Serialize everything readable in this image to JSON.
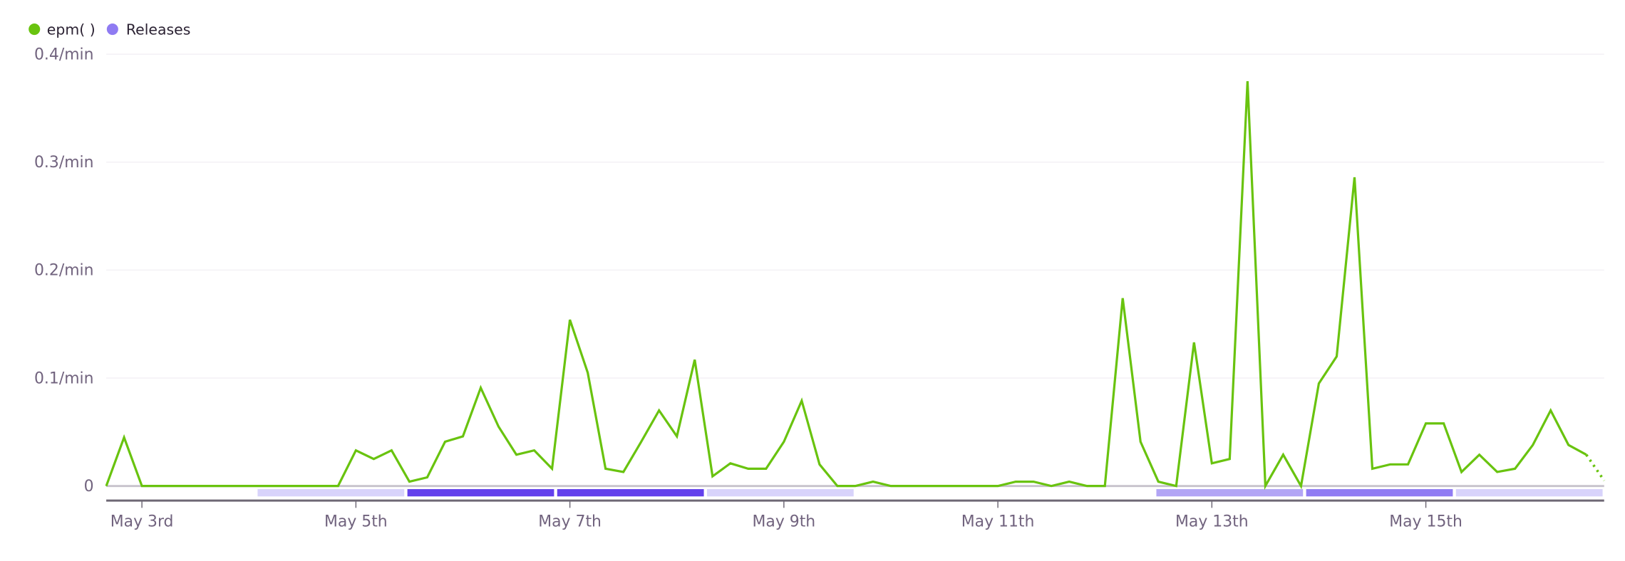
{
  "chart_data": {
    "type": "line",
    "legend": {
      "placement": "top-left",
      "entries": [
        {
          "label": "epm( )",
          "color": "#69c30f"
        },
        {
          "label": "Releases",
          "color": "#8f7bf2"
        }
      ]
    },
    "y_ticks": [
      {
        "value": 0,
        "label": "0"
      },
      {
        "value": 0.1,
        "label": "0.1/min"
      },
      {
        "value": 0.2,
        "label": "0.2/min"
      },
      {
        "value": 0.3,
        "label": "0.3/min"
      },
      {
        "value": 0.4,
        "label": "0.4/min"
      }
    ],
    "ylim": [
      0,
      0.4
    ],
    "xlim": [
      "May 2 16:00",
      "May 16 16:00"
    ],
    "x_ticks": [
      {
        "time": "May 3 00:00",
        "label": "May 3rd"
      },
      {
        "time": "May 5 00:00",
        "label": "May 5th"
      },
      {
        "time": "May 7 00:00",
        "label": "May 7th"
      },
      {
        "time": "May 9 00:00",
        "label": "May 9th"
      },
      {
        "time": "May 11 00:00",
        "label": "May 11th"
      },
      {
        "time": "May 13 00:00",
        "label": "May 13th"
      },
      {
        "time": "May 15 00:00",
        "label": "May 15th"
      }
    ],
    "grid": true,
    "series": [
      {
        "name": "epm( )",
        "color": "#69c30f",
        "last_point_incomplete": true,
        "x": [
          "May 2 16:00",
          "May 2 20:00",
          "May 3 00:00",
          "May 3 04:00",
          "May 3 08:00",
          "May 3 12:00",
          "May 3 16:00",
          "May 3 20:00",
          "May 4 00:00",
          "May 4 04:00",
          "May 4 08:00",
          "May 4 12:00",
          "May 4 16:00",
          "May 4 20:00",
          "May 5 00:00",
          "May 5 04:00",
          "May 5 08:00",
          "May 5 12:00",
          "May 5 16:00",
          "May 5 20:00",
          "May 6 00:00",
          "May 6 04:00",
          "May 6 08:00",
          "May 6 12:00",
          "May 6 16:00",
          "May 6 20:00",
          "May 7 00:00",
          "May 7 04:00",
          "May 7 08:00",
          "May 7 12:00",
          "May 7 16:00",
          "May 7 20:00",
          "May 8 00:00",
          "May 8 04:00",
          "May 8 08:00",
          "May 8 12:00",
          "May 8 16:00",
          "May 8 20:00",
          "May 9 00:00",
          "May 9 04:00",
          "May 9 08:00",
          "May 9 12:00",
          "May 9 16:00",
          "May 9 20:00",
          "May 10 00:00",
          "May 10 04:00",
          "May 10 08:00",
          "May 10 12:00",
          "May 10 16:00",
          "May 10 20:00",
          "May 11 00:00",
          "May 11 04:00",
          "May 11 08:00",
          "May 11 12:00",
          "May 11 16:00",
          "May 11 20:00",
          "May 12 00:00",
          "May 12 04:00",
          "May 12 08:00",
          "May 12 12:00",
          "May 12 16:00",
          "May 12 20:00",
          "May 13 00:00",
          "May 13 04:00",
          "May 13 08:00",
          "May 13 12:00",
          "May 13 16:00",
          "May 13 20:00",
          "May 14 00:00",
          "May 14 04:00",
          "May 14 08:00",
          "May 14 12:00",
          "May 14 16:00",
          "May 14 20:00",
          "May 15 00:00",
          "May 15 04:00",
          "May 15 08:00",
          "May 15 12:00",
          "May 15 16:00",
          "May 15 20:00",
          "May 16 00:00",
          "May 16 04:00",
          "May 16 08:00",
          "May 16 12:00",
          "May 16 16:00"
        ],
        "values": [
          0,
          0.045,
          0,
          0,
          0,
          0,
          0,
          0,
          0,
          0,
          0,
          0,
          0,
          0,
          0.033,
          0.025,
          0.033,
          0.004,
          0.008,
          0.041,
          0.046,
          0.091,
          0.055,
          0.029,
          0.033,
          0.016,
          0.154,
          0.105,
          0.016,
          0.013,
          0.041,
          0.07,
          0.046,
          0.117,
          0.009,
          0.021,
          0.016,
          0.016,
          0.041,
          0.079,
          0.02,
          0,
          0,
          0.004,
          0,
          0,
          0,
          0,
          0,
          0,
          0,
          0.004,
          0.004,
          0,
          0.004,
          0,
          0,
          0.174,
          0.041,
          0.004,
          0,
          0.133,
          0.021,
          0.025,
          0.375,
          0,
          0.029,
          0,
          0.095,
          0.12,
          0.286,
          0.016,
          0.02,
          0.02,
          0.058,
          0.058,
          0.013,
          0.029,
          0.013,
          0.016,
          0.038,
          0.07,
          0.038,
          0.029,
          0.005
        ]
      }
    ],
    "releases": [
      {
        "start": "May 2 16:00",
        "end": "May 4 01:36",
        "color": null
      },
      {
        "start": "May 4 01:36",
        "end": "May 5 11:12",
        "color": "#d8d3fb"
      },
      {
        "start": "May 5 11:12",
        "end": "May 6 20:48",
        "color": "#6340ec"
      },
      {
        "start": "May 6 20:48",
        "end": "May 8 06:24",
        "color": "#6340ec"
      },
      {
        "start": "May 8 06:24",
        "end": "May 9 16:00",
        "color": "#d8d3fb"
      },
      {
        "start": "May 9 16:00",
        "end": "May 11 01:36",
        "color": null
      },
      {
        "start": "May 11 01:36",
        "end": "May 12 11:12",
        "color": null
      },
      {
        "start": "May 12 11:12",
        "end": "May 13 20:48",
        "color": "#b2a5f5"
      },
      {
        "start": "May 13 20:48",
        "end": "May 15 06:24",
        "color": "#907cf3"
      },
      {
        "start": "May 15 06:24",
        "end": "May 16 16:00",
        "color": "#d8d3fb"
      }
    ]
  }
}
